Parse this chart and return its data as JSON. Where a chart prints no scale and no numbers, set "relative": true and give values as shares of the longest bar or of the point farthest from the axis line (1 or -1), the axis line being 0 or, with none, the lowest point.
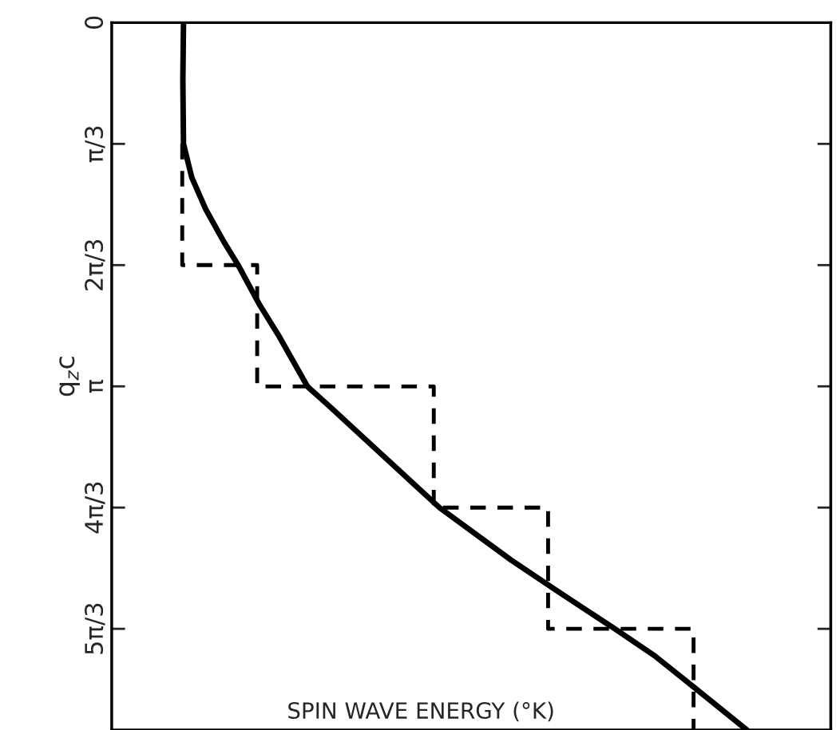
{
  "chart_data": {
    "type": "line",
    "orientation": "horizontal",
    "relative": true,
    "xlabel": "SPIN WAVE ENERGY (°K)",
    "ylabel": "q$_{z}$c",
    "ylim": [
      6.11,
      0
    ],
    "yticks": [
      0,
      {
        "value": 1.0472,
        "label": "π/3"
      },
      {
        "value": 2.0944,
        "label": "2π/3"
      },
      {
        "value": 3.1416,
        "label": "π"
      },
      {
        "value": 4.1888,
        "label": "4π/3"
      },
      {
        "value": 5.236,
        "label": "5π/3"
      }
    ],
    "tick_labels": "y",
    "grid": false,
    "marker": "none",
    "series": [
      {
        "line_style": "solid",
        "color": "#000000",
        "x": [
          0,
          0.496,
          1.047,
          1.337,
          1.612,
          1.888,
          2.094,
          2.439,
          2.714,
          3.142,
          3.3,
          3.679,
          4.189,
          4.643,
          4.919,
          5.236,
          5.47,
          5.746,
          6.11
        ],
        "values": [
          0.113,
          0.112,
          0.113,
          0.126,
          0.148,
          0.176,
          0.199,
          0.233,
          0.264,
          0.308,
          0.34,
          0.415,
          0.516,
          0.629,
          0.704,
          0.792,
          0.855,
          0.918,
          1.0
        ]
      },
      {
        "type": "step",
        "line_style": "dashed",
        "color": "#000000",
        "x": [
          1.047,
          2.094,
          3.142,
          4.189,
          5.236,
          6.11
        ],
        "values": [
          0.111,
          0.229,
          0.507,
          0.687,
          0.916,
          0.916
        ]
      }
    ]
  }
}
